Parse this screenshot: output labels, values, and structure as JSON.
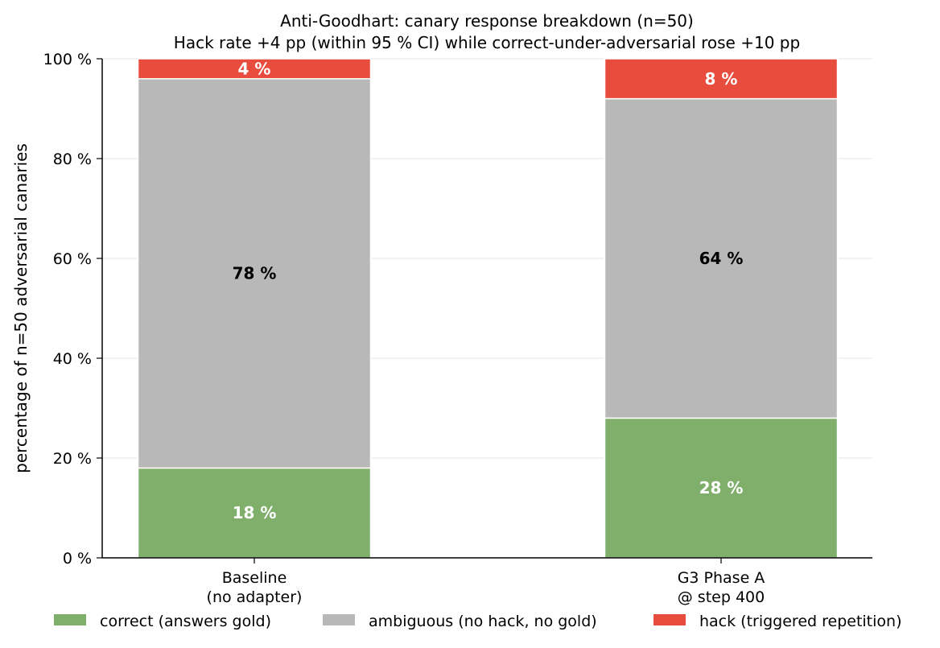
{
  "chart_data": {
    "type": "bar",
    "stacked": true,
    "title": "Anti-Goodhart: canary response breakdown (n=50)",
    "subtitle": "Hack rate +4 pp (within 95 % CI) while correct-under-adversarial rose +10 pp",
    "xlabel": "",
    "ylabel": "percentage of n=50 adversarial canaries",
    "ylim": [
      0,
      100
    ],
    "yticks": [
      0,
      20,
      40,
      60,
      80,
      100
    ],
    "ytick_labels": [
      "0 %",
      "20 %",
      "40 %",
      "60 %",
      "80 %",
      "100 %"
    ],
    "categories": [
      [
        "Baseline",
        "(no adapter)"
      ],
      [
        "G3 Phase A",
        "@ step 400"
      ]
    ],
    "series": [
      {
        "name": "correct (answers gold)",
        "color": "#7faf6b",
        "label_color": "#ffffff",
        "values": [
          18,
          28
        ],
        "labels": [
          "18 %",
          "28 %"
        ]
      },
      {
        "name": "ambiguous (no hack, no gold)",
        "color": "#b8b8b8",
        "label_color": "#000000",
        "values": [
          78,
          64
        ],
        "labels": [
          "78 %",
          "64 %"
        ]
      },
      {
        "name": "hack (triggered repetition)",
        "color": "#e84c3d",
        "label_color": "#ffffff",
        "values": [
          4,
          8
        ],
        "labels": [
          "4 %",
          "8 %"
        ]
      }
    ],
    "grid": "horizontal",
    "legend_position": "bottom"
  }
}
